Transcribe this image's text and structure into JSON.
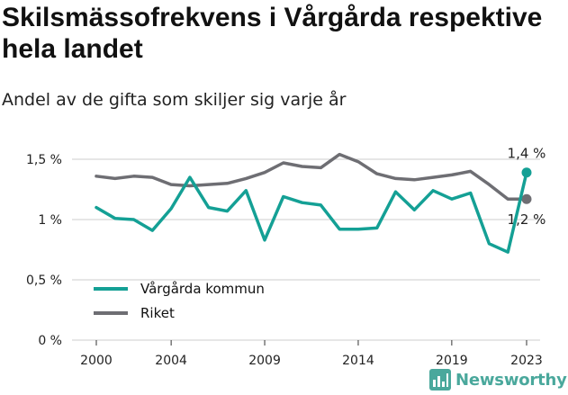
{
  "title": "Skilsmässofrekvens i Vårgårda respektive hela landet",
  "subtitle": "Andel av de gifta som skiljer sig varje år",
  "brand": "Newsworthy",
  "colors": {
    "vargarda": "#14a095",
    "riket": "#6e6e73",
    "grid": "#cccccc",
    "brand": "#4aa89c"
  },
  "chart_data": {
    "type": "line",
    "x_ticks": [
      2000,
      2004,
      2009,
      2014,
      2019,
      2023
    ],
    "y_ticks": [
      "0 %",
      "0,5 %",
      "1 %",
      "1,5 %"
    ],
    "y_tick_values": [
      0,
      0.5,
      1.0,
      1.5
    ],
    "ylim": [
      0,
      1.5
    ],
    "xlim": [
      2000,
      2023
    ],
    "grid": true,
    "legend_position": "bottom-left",
    "series": [
      {
        "name": "Vårgårda kommun",
        "color": "#14a095",
        "x": [
          2000,
          2001,
          2002,
          2003,
          2004,
          2005,
          2006,
          2007,
          2008,
          2009,
          2010,
          2011,
          2012,
          2013,
          2014,
          2015,
          2016,
          2017,
          2018,
          2019,
          2020,
          2021,
          2022,
          2023
        ],
        "y": [
          1.1,
          1.01,
          1.0,
          0.91,
          1.09,
          1.35,
          1.1,
          1.07,
          1.24,
          0.83,
          1.19,
          1.14,
          1.12,
          0.92,
          0.92,
          0.93,
          1.23,
          1.08,
          1.24,
          1.17,
          1.22,
          0.8,
          0.73,
          1.39
        ],
        "end_label": "1,4 %"
      },
      {
        "name": "Riket",
        "color": "#6e6e73",
        "x": [
          2000,
          2001,
          2002,
          2003,
          2004,
          2005,
          2006,
          2007,
          2008,
          2009,
          2010,
          2011,
          2012,
          2013,
          2014,
          2015,
          2016,
          2017,
          2018,
          2019,
          2020,
          2021,
          2022,
          2023
        ],
        "y": [
          1.36,
          1.34,
          1.36,
          1.35,
          1.29,
          1.28,
          1.29,
          1.3,
          1.34,
          1.39,
          1.47,
          1.44,
          1.43,
          1.54,
          1.48,
          1.38,
          1.34,
          1.33,
          1.35,
          1.37,
          1.4,
          1.29,
          1.17,
          1.17
        ],
        "end_label": "1,2 %"
      }
    ]
  }
}
